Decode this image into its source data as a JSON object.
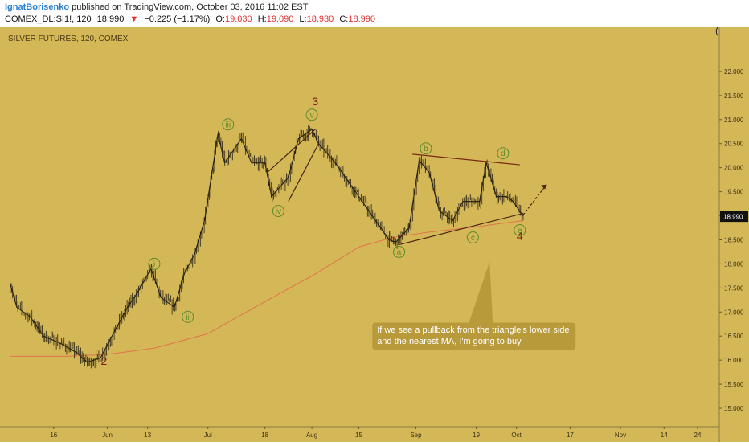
{
  "header": {
    "author": "IgnatBorisenko",
    "published": "published on TradingView.com, October 03, 2016 11:02 EST",
    "symbol": "COMEX_DL:SI1!, 120",
    "last": "18.990",
    "change_arrow": "▼",
    "change": "−0.225 (−1.17%)",
    "o_label": "O:",
    "o": "19.030",
    "h_label": "H:",
    "h": "19.090",
    "l_label": "L:",
    "l": "18.930",
    "c_label": "C:",
    "c": "18.990"
  },
  "colors": {
    "background": "#d4b858",
    "candles": "#2b2414",
    "moving_average": "#e2734a",
    "wave_labels_green": "#5e8a2c",
    "wave_labels_major": "#7a1a0c",
    "trendlines": "#4a2410",
    "callout": "#b89a3a",
    "price_badge": "#111111"
  },
  "chart_data": {
    "type": "line",
    "title": "SILVER FUTURES, 120, COMEX",
    "current_price": "18.990",
    "yaxis_ticks": [
      "22.000",
      "21.500",
      "21.000",
      "20.500",
      "20.000",
      "19.500",
      "19.000",
      "18.500",
      "18.000",
      "17.500",
      "17.000",
      "16.500",
      "16.000",
      "15.500",
      "15.000"
    ],
    "ylim": [
      14.9,
      22.55
    ],
    "xaxis_ticks": [
      "16",
      "Jun",
      "13",
      "Jul",
      "18",
      "Aug",
      "15",
      "Sep",
      "19",
      "Oct",
      "17",
      "Nov",
      "14",
      "24"
    ],
    "xaxis_dates": [
      "2016-05-16",
      "2016-06-01",
      "2016-06-13",
      "2016-07-01",
      "2016-07-18",
      "2016-08-01",
      "2016-08-15",
      "2016-09-01",
      "2016-09-19",
      "2016-10-01",
      "2016-10-17",
      "2016-11-01",
      "2016-11-14",
      "2016-11-24"
    ],
    "series": [
      {
        "kind": "price",
        "x": [
          "2016-05-03",
          "2016-05-05",
          "2016-05-09",
          "2016-05-13",
          "2016-05-18",
          "2016-05-23",
          "2016-05-26",
          "2016-05-30",
          "2016-06-02",
          "2016-06-07",
          "2016-06-10",
          "2016-06-14",
          "2016-06-17",
          "2016-06-21",
          "2016-06-24",
          "2016-06-27",
          "2016-06-30",
          "2016-07-04",
          "2016-07-06",
          "2016-07-08",
          "2016-07-11",
          "2016-07-14",
          "2016-07-18",
          "2016-07-20",
          "2016-07-25",
          "2016-07-28",
          "2016-08-01",
          "2016-08-03",
          "2016-08-08",
          "2016-08-11",
          "2016-08-15",
          "2016-08-19",
          "2016-08-24",
          "2016-08-26",
          "2016-08-30",
          "2016-09-02",
          "2016-09-05",
          "2016-09-08",
          "2016-09-12",
          "2016-09-15",
          "2016-09-20",
          "2016-09-22",
          "2016-09-25",
          "2016-09-28",
          "2016-09-30",
          "2016-10-03"
        ],
        "y": [
          17.6,
          17.1,
          16.9,
          16.5,
          16.35,
          16.15,
          15.95,
          16.05,
          16.45,
          17.1,
          17.4,
          17.9,
          17.3,
          17.1,
          17.8,
          18.2,
          18.9,
          20.7,
          20.1,
          20.3,
          20.6,
          20.1,
          20.1,
          19.4,
          19.8,
          20.6,
          20.8,
          20.5,
          20.1,
          19.8,
          19.4,
          19.0,
          18.5,
          18.45,
          18.75,
          20.15,
          19.9,
          19.1,
          18.9,
          19.3,
          19.3,
          20.1,
          19.4,
          19.4,
          19.3,
          18.99
        ]
      },
      {
        "kind": "moving_average",
        "x": [
          "2016-05-03",
          "2016-05-20",
          "2016-06-01",
          "2016-06-15",
          "2016-07-01",
          "2016-07-15",
          "2016-08-01",
          "2016-08-15",
          "2016-08-25",
          "2016-09-05",
          "2016-09-20",
          "2016-10-03"
        ],
        "y": [
          16.08,
          16.08,
          16.12,
          16.25,
          16.55,
          17.1,
          17.75,
          18.35,
          18.55,
          18.66,
          18.78,
          18.9
        ]
      }
    ],
    "annotations": [
      {
        "label": "2",
        "style": "major",
        "x": "2016-05-31",
        "y": 15.9
      },
      {
        "label": "3",
        "style": "major",
        "x": "2016-08-02",
        "y": 21.3
      },
      {
        "label": "4",
        "style": "major",
        "x": "2016-10-02",
        "y": 18.5
      },
      {
        "label": "i",
        "style": "circled",
        "x": "2016-06-15",
        "y": 18.0
      },
      {
        "label": "ii",
        "style": "circled",
        "x": "2016-06-25",
        "y": 16.9
      },
      {
        "label": "iii",
        "style": "circled",
        "x": "2016-07-07",
        "y": 20.9
      },
      {
        "label": "iv",
        "style": "circled",
        "x": "2016-07-22",
        "y": 19.1
      },
      {
        "label": "v",
        "style": "circled",
        "x": "2016-08-01",
        "y": 21.1
      },
      {
        "label": "a",
        "style": "circled",
        "x": "2016-08-27",
        "y": 18.25
      },
      {
        "label": "b",
        "style": "circled",
        "x": "2016-09-04",
        "y": 20.4
      },
      {
        "label": "c",
        "style": "circled",
        "x": "2016-09-18",
        "y": 18.55
      },
      {
        "label": "d",
        "style": "circled",
        "x": "2016-09-27",
        "y": 20.3
      },
      {
        "label": "e",
        "style": "circled",
        "x": "2016-10-02",
        "y": 18.7
      }
    ],
    "callout": "If we see a pullback from the triangle's lower side and the nearest MA, I'm going to buy"
  }
}
